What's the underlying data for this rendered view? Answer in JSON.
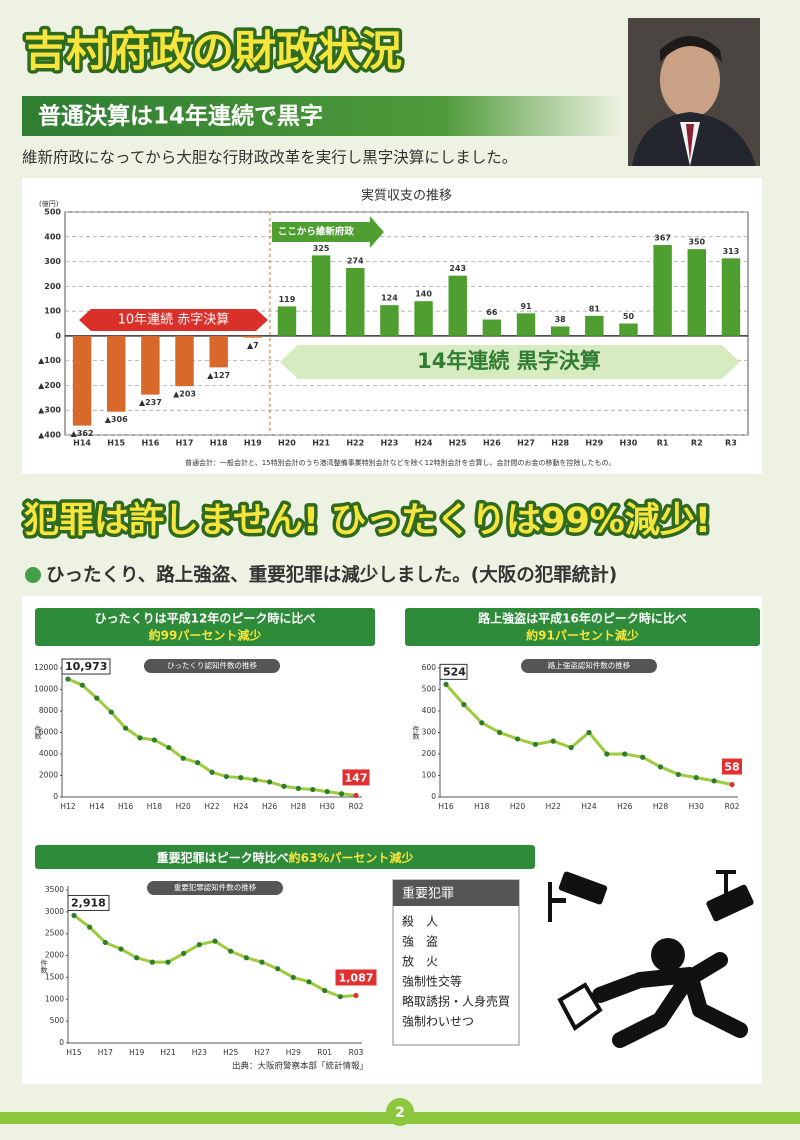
{
  "header": {
    "title": "吉村府政の財政状況",
    "banner": "普通決算は14年連続で黒字",
    "lead": "維新府政になってから大胆な行財政改革を実行し黒字決算にしました。"
  },
  "crime_section": {
    "title": "犯罪は許しません! ひったくりは99%減少!",
    "subtitle": "ひったくり、路上強盗、重要犯罪は減少しました。(大阪の犯罪統計)"
  },
  "important_crimes": {
    "title": "重要犯罪",
    "items": [
      "殺　人",
      "強　盗",
      "放　火",
      "強制性交等",
      "略取誘拐・人身売買",
      "強制わいせつ"
    ]
  },
  "source": "出典：大阪府警察本部「統計情報」",
  "page_number": "2",
  "chart_data": [
    {
      "type": "bar",
      "title": "実質収支の推移",
      "ylabel": "(億円)",
      "categories": [
        "H14",
        "H15",
        "H16",
        "H17",
        "H18",
        "H19",
        "H20",
        "H21",
        "H22",
        "H23",
        "H24",
        "H25",
        "H26",
        "H27",
        "H28",
        "H29",
        "H30",
        "R1",
        "R2",
        "R3"
      ],
      "values": [
        -362,
        -306,
        -237,
        -203,
        -127,
        -7,
        119,
        325,
        274,
        124,
        140,
        243,
        66,
        91,
        38,
        81,
        50,
        367,
        350,
        313
      ],
      "value_labels": [
        "▲362",
        "▲306",
        "▲237",
        "▲203",
        "▲127",
        "▲7",
        "119",
        "325",
        "274",
        "124",
        "140",
        "243",
        "66",
        "91",
        "38",
        "81",
        "50",
        "367",
        "350",
        "313"
      ],
      "color": "#4e9e30",
      "negative_color": "#d9692a",
      "ylim": [
        -400,
        500
      ],
      "yticks": [
        500,
        400,
        300,
        200,
        100,
        0,
        {
          "value": -100,
          "label": "▲100"
        },
        {
          "value": -200,
          "label": "▲200"
        },
        {
          "value": -300,
          "label": "▲300"
        },
        {
          "value": -400,
          "label": "▲400"
        }
      ],
      "grid": true,
      "annotations": {
        "deficit": "10年連続 赤字決算",
        "surplus": "14年連続 黒字決算",
        "start": "ここから維新府政"
      },
      "note": "普通会計：一般会計と、15特別会計のうち港湾整備事業特別会計などを除く12特別会計を合算し、会計間のお金の移動を控除したもの。"
    },
    {
      "type": "line",
      "title": "ひったくりは平成12年のピーク時に比べ",
      "subtitle": "約99パーセント減少",
      "plot_label": "ひったくり認知件数の推移",
      "ylabel": "件数",
      "categories": [
        "H12",
        null,
        "H14",
        null,
        "H16",
        null,
        "H18",
        null,
        "H20",
        null,
        "H22",
        null,
        "H24",
        null,
        "H26",
        null,
        "H28",
        null,
        "H30",
        null,
        "R02"
      ],
      "values": [
        10973,
        10400,
        9200,
        7900,
        6400,
        5500,
        5300,
        4600,
        3600,
        3200,
        2300,
        1900,
        1800,
        1600,
        1400,
        1000,
        800,
        700,
        500,
        300,
        147
      ],
      "value_labels": [
        "10,973",
        null,
        null,
        null,
        null,
        null,
        null,
        null,
        null,
        null,
        null,
        null,
        null,
        null,
        null,
        null,
        null,
        null,
        null,
        null,
        "147"
      ],
      "color": "#9ccc3c",
      "marker_color": "#2f7d2a",
      "ylim": [
        0,
        12000
      ],
      "yticks": [
        0,
        2000,
        4000,
        6000,
        8000,
        10000,
        12000
      ]
    },
    {
      "type": "line",
      "title": "路上強盗は平成16年のピーク時に比べ",
      "subtitle": "約91パーセント減少",
      "plot_label": "路上強盗認知件数の推移",
      "ylabel": "件数",
      "categories": [
        "H16",
        null,
        "H18",
        null,
        "H20",
        null,
        "H22",
        null,
        "H24",
        null,
        "H26",
        null,
        "H28",
        null,
        "H30",
        null,
        "R02"
      ],
      "values": [
        524,
        430,
        345,
        300,
        270,
        245,
        260,
        230,
        300,
        200,
        200,
        185,
        140,
        105,
        90,
        75,
        58
      ],
      "value_labels": [
        "524",
        null,
        null,
        null,
        null,
        null,
        null,
        null,
        null,
        null,
        null,
        null,
        null,
        null,
        null,
        null,
        "58"
      ],
      "color": "#9ccc3c",
      "marker_color": "#2f7d2a",
      "ylim": [
        0,
        600
      ],
      "yticks": [
        0,
        100,
        200,
        300,
        400,
        500,
        600
      ]
    },
    {
      "type": "line",
      "title": "重要犯罪はピーク時比べ",
      "subtitle": "約63%パーセント減少",
      "plot_label": "重要犯罪認知件数の推移",
      "ylabel": "件数",
      "categories": [
        "H15",
        null,
        "H17",
        null,
        "H19",
        null,
        "H21",
        null,
        "H23",
        null,
        "H25",
        null,
        "H27",
        null,
        "H29",
        null,
        "R01",
        null,
        "R03"
      ],
      "values": [
        2918,
        2650,
        2300,
        2150,
        1950,
        1850,
        1850,
        2050,
        2250,
        2330,
        2100,
        1950,
        1850,
        1700,
        1500,
        1400,
        1200,
        1060,
        1087
      ],
      "value_labels": [
        "2,918",
        null,
        null,
        null,
        null,
        null,
        null,
        null,
        null,
        null,
        null,
        null,
        null,
        null,
        null,
        null,
        null,
        null,
        "1,087"
      ],
      "color": "#9ccc3c",
      "marker_color": "#2f7d2a",
      "ylim": [
        0,
        3500
      ],
      "yticks": [
        0,
        500,
        1000,
        1500,
        2000,
        2500,
        3000,
        3500
      ]
    }
  ]
}
